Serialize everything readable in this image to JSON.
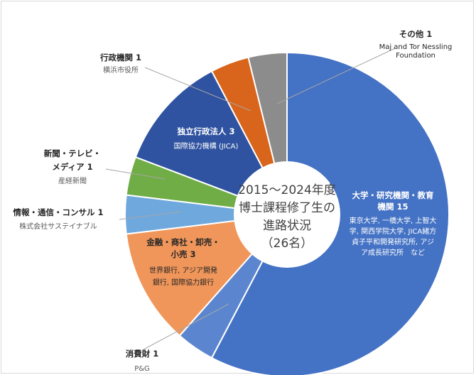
{
  "chart_data": {
    "type": "pie",
    "title": "2015～2024年度 博士課程修了生の 進路状況 （26名）",
    "center_lines": [
      "2015～2024年度",
      "博士課程修了生の",
      "進路状況",
      "（26名）"
    ],
    "total": 26,
    "start_category": "大学・研究機関・教育機関",
    "slices": [
      {
        "name": "大学・研究機関・教育機関",
        "value": 15,
        "title_lines": [
          "大学・研究機関・教育",
          "機関 15"
        ],
        "detail_lines": [
          "東京大学, 一橋大学, 上智大",
          "学, 関西学院大学, JICA緒方",
          "貞子平和開発研究所, アジ",
          "ア成長研究所　など"
        ],
        "color": "#4472c4"
      },
      {
        "name": "消費財",
        "value": 1,
        "title_lines": [
          "消費財 1"
        ],
        "detail_lines": [
          "P&G"
        ],
        "color": "#5b86cf"
      },
      {
        "name": "金融・商社・卸売・小売",
        "value": 3,
        "title_lines": [
          "金融・商社・卸売・",
          "小売 3"
        ],
        "detail_lines": [
          "世界銀行, アジア開発",
          "銀行, 国際協力銀行"
        ],
        "color": "#f0965a"
      },
      {
        "name": "情報・通信・コンサル",
        "value": 1,
        "title_lines": [
          "情報・通信・コンサル 1"
        ],
        "detail_lines": [
          "株式会社サステイナブル"
        ],
        "color": "#6fa8dc"
      },
      {
        "name": "新聞・テレビ・メディア",
        "value": 1,
        "title_lines": [
          "新聞・テレビ・",
          "メディア 1"
        ],
        "detail_lines": [
          "産経新聞"
        ],
        "color": "#70ad47"
      },
      {
        "name": "独立行政法人",
        "value": 3,
        "title_lines": [
          "独立行政法人 3"
        ],
        "detail_lines": [
          "国際協力機構 (JICA)"
        ],
        "color": "#2f53a0"
      },
      {
        "name": "行政機関",
        "value": 1,
        "title_lines": [
          "行政機関 1"
        ],
        "detail_lines": [
          "横浜市役所"
        ],
        "color": "#d9641b"
      },
      {
        "name": "その他",
        "value": 1,
        "title_lines": [
          "その他 1"
        ],
        "detail_lines": [
          "Maj and Tor Nessling",
          "Foundation"
        ],
        "color": "#8c8c8c"
      }
    ]
  }
}
